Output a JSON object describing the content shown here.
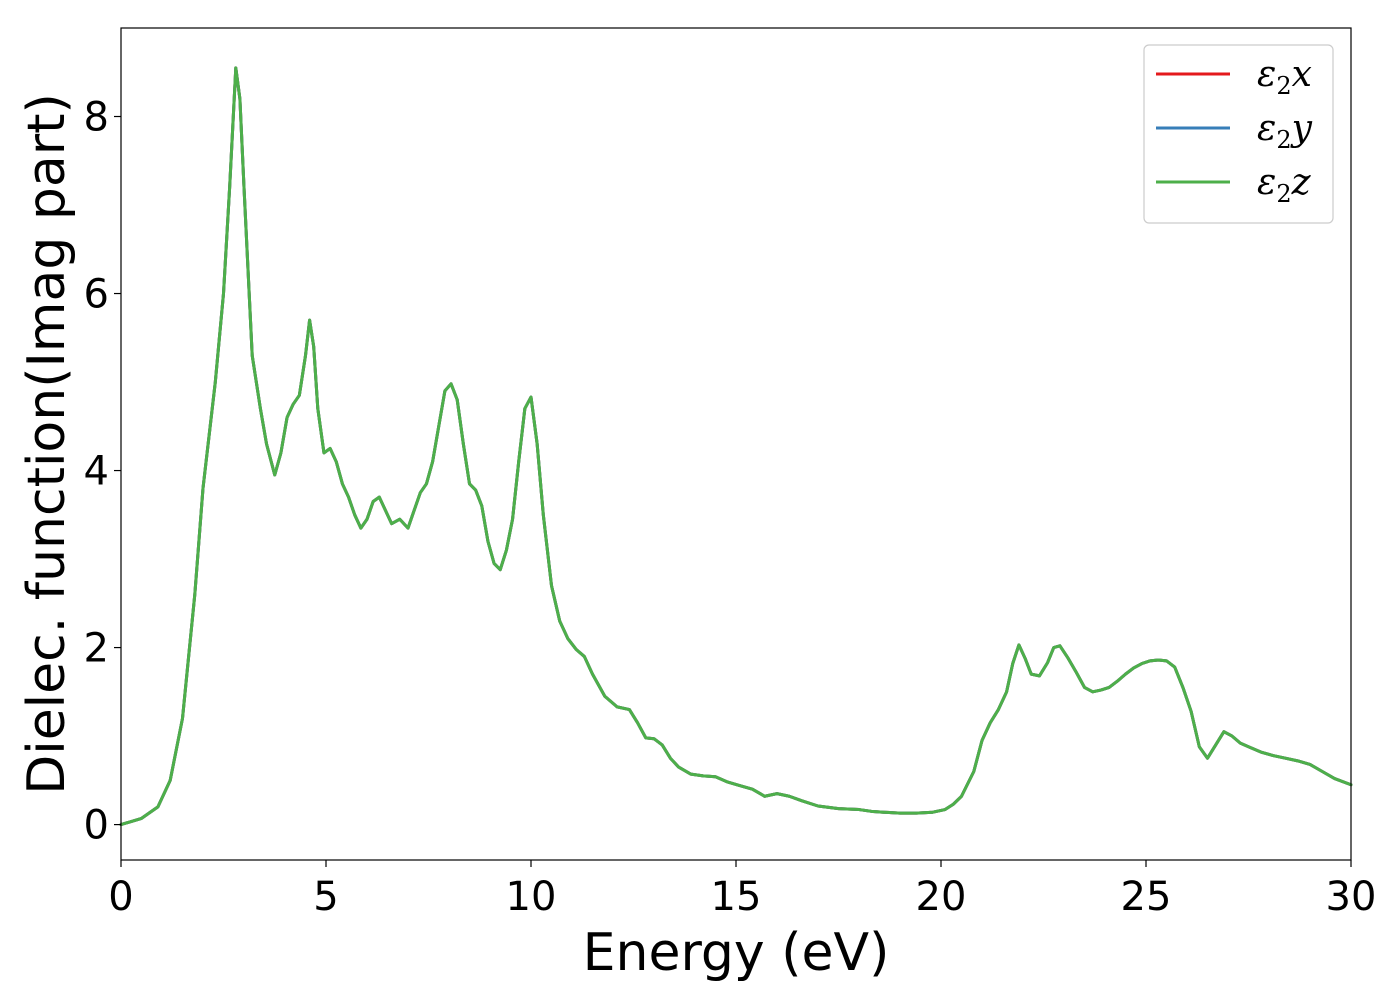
{
  "chart_data": {
    "type": "line",
    "title": "",
    "xlabel": "Energy (eV)",
    "ylabel": "Dielec. function(Imag part)",
    "xlim": [
      0,
      30
    ],
    "ylim": [
      -0.4,
      9.0
    ],
    "xticks": [
      0,
      5,
      10,
      15,
      20,
      25,
      30
    ],
    "yticks": [
      0,
      2,
      4,
      6,
      8
    ],
    "grid": false,
    "legend_position": "top-right",
    "x": [
      0,
      0.5,
      0.9,
      1.2,
      1.5,
      1.8,
      2.0,
      2.3,
      2.5,
      2.65,
      2.8,
      2.9,
      3.0,
      3.2,
      3.4,
      3.55,
      3.75,
      3.9,
      4.05,
      4.2,
      4.35,
      4.5,
      4.6,
      4.7,
      4.8,
      4.95,
      5.1,
      5.25,
      5.4,
      5.55,
      5.7,
      5.85,
      6.0,
      6.15,
      6.3,
      6.45,
      6.6,
      6.8,
      7.0,
      7.15,
      7.3,
      7.45,
      7.6,
      7.75,
      7.9,
      8.05,
      8.2,
      8.35,
      8.5,
      8.65,
      8.8,
      8.95,
      9.1,
      9.25,
      9.4,
      9.55,
      9.7,
      9.85,
      10.0,
      10.15,
      10.3,
      10.5,
      10.7,
      10.9,
      11.1,
      11.3,
      11.5,
      11.8,
      12.1,
      12.4,
      12.6,
      12.8,
      13.0,
      13.2,
      13.4,
      13.6,
      13.9,
      14.2,
      14.5,
      14.8,
      15.1,
      15.4,
      15.7,
      16.0,
      16.3,
      16.6,
      17.0,
      17.5,
      18.0,
      18.3,
      18.6,
      19.0,
      19.4,
      19.8,
      20.1,
      20.3,
      20.5,
      20.8,
      21.0,
      21.2,
      21.4,
      21.6,
      21.75,
      21.9,
      22.05,
      22.2,
      22.4,
      22.6,
      22.75,
      22.9,
      23.1,
      23.3,
      23.5,
      23.7,
      23.9,
      24.1,
      24.3,
      24.5,
      24.7,
      24.9,
      25.1,
      25.3,
      25.5,
      25.7,
      25.9,
      26.1,
      26.3,
      26.5,
      26.7,
      26.9,
      27.1,
      27.3,
      27.5,
      27.8,
      28.1,
      28.4,
      28.7,
      29.0,
      29.3,
      29.6,
      30.0
    ],
    "series": [
      {
        "name": "ε₂x",
        "color": "#e41a1c",
        "values": [
          0.0,
          0.07,
          0.2,
          0.5,
          1.2,
          2.6,
          3.8,
          5.0,
          6.0,
          7.2,
          8.55,
          8.2,
          7.2,
          5.3,
          4.7,
          4.3,
          3.95,
          4.2,
          4.6,
          4.75,
          4.85,
          5.3,
          5.7,
          5.4,
          4.7,
          4.2,
          4.25,
          4.1,
          3.85,
          3.7,
          3.5,
          3.35,
          3.45,
          3.65,
          3.7,
          3.55,
          3.4,
          3.45,
          3.35,
          3.55,
          3.75,
          3.85,
          4.1,
          4.5,
          4.9,
          4.98,
          4.8,
          4.3,
          3.85,
          3.78,
          3.6,
          3.2,
          2.95,
          2.88,
          3.1,
          3.45,
          4.1,
          4.7,
          4.83,
          4.3,
          3.5,
          2.7,
          2.3,
          2.1,
          1.98,
          1.9,
          1.7,
          1.45,
          1.33,
          1.3,
          1.15,
          0.98,
          0.97,
          0.9,
          0.75,
          0.65,
          0.57,
          0.55,
          0.54,
          0.48,
          0.44,
          0.4,
          0.32,
          0.35,
          0.32,
          0.27,
          0.21,
          0.18,
          0.17,
          0.15,
          0.14,
          0.13,
          0.13,
          0.14,
          0.17,
          0.23,
          0.32,
          0.6,
          0.95,
          1.15,
          1.3,
          1.5,
          1.82,
          2.03,
          1.88,
          1.7,
          1.68,
          1.83,
          2.0,
          2.02,
          1.88,
          1.72,
          1.55,
          1.5,
          1.52,
          1.55,
          1.62,
          1.7,
          1.77,
          1.82,
          1.85,
          1.86,
          1.85,
          1.78,
          1.55,
          1.28,
          0.88,
          0.75,
          0.9,
          1.05,
          1.0,
          0.92,
          0.88,
          0.82,
          0.78,
          0.75,
          0.72,
          0.68,
          0.6,
          0.52,
          0.45
        ]
      },
      {
        "name": "ε₂y",
        "color": "#377eb8",
        "values": [
          0.0,
          0.07,
          0.2,
          0.5,
          1.2,
          2.6,
          3.8,
          5.0,
          6.0,
          7.2,
          8.55,
          8.2,
          7.2,
          5.3,
          4.7,
          4.3,
          3.95,
          4.2,
          4.6,
          4.75,
          4.85,
          5.3,
          5.7,
          5.4,
          4.7,
          4.2,
          4.25,
          4.1,
          3.85,
          3.7,
          3.5,
          3.35,
          3.45,
          3.65,
          3.7,
          3.55,
          3.4,
          3.45,
          3.35,
          3.55,
          3.75,
          3.85,
          4.1,
          4.5,
          4.9,
          4.98,
          4.8,
          4.3,
          3.85,
          3.78,
          3.6,
          3.2,
          2.95,
          2.88,
          3.1,
          3.45,
          4.1,
          4.7,
          4.83,
          4.3,
          3.5,
          2.7,
          2.3,
          2.1,
          1.98,
          1.9,
          1.7,
          1.45,
          1.33,
          1.3,
          1.15,
          0.98,
          0.97,
          0.9,
          0.75,
          0.65,
          0.57,
          0.55,
          0.54,
          0.48,
          0.44,
          0.4,
          0.32,
          0.35,
          0.32,
          0.27,
          0.21,
          0.18,
          0.17,
          0.15,
          0.14,
          0.13,
          0.13,
          0.14,
          0.17,
          0.23,
          0.32,
          0.6,
          0.95,
          1.15,
          1.3,
          1.5,
          1.82,
          2.03,
          1.88,
          1.7,
          1.68,
          1.83,
          2.0,
          2.02,
          1.88,
          1.72,
          1.55,
          1.5,
          1.52,
          1.55,
          1.62,
          1.7,
          1.77,
          1.82,
          1.85,
          1.86,
          1.85,
          1.78,
          1.55,
          1.28,
          0.88,
          0.75,
          0.9,
          1.05,
          1.0,
          0.92,
          0.88,
          0.82,
          0.78,
          0.75,
          0.72,
          0.68,
          0.6,
          0.52,
          0.45
        ]
      },
      {
        "name": "ε₂z",
        "color": "#4daf4a",
        "values": [
          0.0,
          0.07,
          0.2,
          0.5,
          1.2,
          2.6,
          3.8,
          5.0,
          6.0,
          7.2,
          8.55,
          8.2,
          7.2,
          5.3,
          4.7,
          4.3,
          3.95,
          4.2,
          4.6,
          4.75,
          4.85,
          5.3,
          5.7,
          5.4,
          4.7,
          4.2,
          4.25,
          4.1,
          3.85,
          3.7,
          3.5,
          3.35,
          3.45,
          3.65,
          3.7,
          3.55,
          3.4,
          3.45,
          3.35,
          3.55,
          3.75,
          3.85,
          4.1,
          4.5,
          4.9,
          4.98,
          4.8,
          4.3,
          3.85,
          3.78,
          3.6,
          3.2,
          2.95,
          2.88,
          3.1,
          3.45,
          4.1,
          4.7,
          4.83,
          4.3,
          3.5,
          2.7,
          2.3,
          2.1,
          1.98,
          1.9,
          1.7,
          1.45,
          1.33,
          1.3,
          1.15,
          0.98,
          0.97,
          0.9,
          0.75,
          0.65,
          0.57,
          0.55,
          0.54,
          0.48,
          0.44,
          0.4,
          0.32,
          0.35,
          0.32,
          0.27,
          0.21,
          0.18,
          0.17,
          0.15,
          0.14,
          0.13,
          0.13,
          0.14,
          0.17,
          0.23,
          0.32,
          0.6,
          0.95,
          1.15,
          1.3,
          1.5,
          1.82,
          2.03,
          1.88,
          1.7,
          1.68,
          1.83,
          2.0,
          2.02,
          1.88,
          1.72,
          1.55,
          1.5,
          1.52,
          1.55,
          1.62,
          1.7,
          1.77,
          1.82,
          1.85,
          1.86,
          1.85,
          1.78,
          1.55,
          1.28,
          0.88,
          0.75,
          0.9,
          1.05,
          1.0,
          0.92,
          0.88,
          0.82,
          0.78,
          0.75,
          0.72,
          0.68,
          0.6,
          0.52,
          0.45
        ]
      }
    ]
  }
}
